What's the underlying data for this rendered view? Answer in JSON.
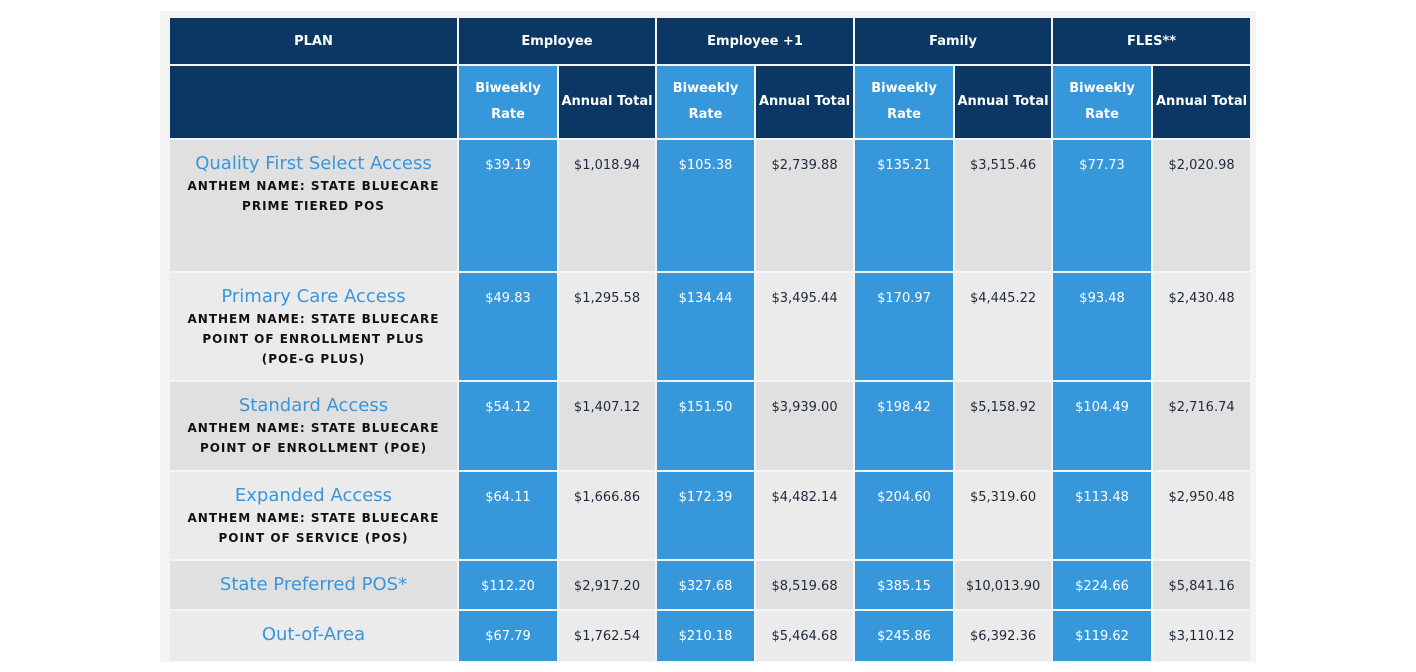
{
  "header": {
    "plan": "PLAN",
    "groups": [
      "Employee",
      "Employee +1",
      "Family",
      "FLES**"
    ],
    "biweekly": "Biweekly Rate",
    "annual": "Annual Total"
  },
  "rows": [
    {
      "name": "Quality First Select Access",
      "anthem": "ANTHEM NAME: STATE BLUECARE PRIME TIERED POS",
      "values": [
        "$39.19",
        "$1,018.94",
        "$105.38",
        "$2,739.88",
        "$135.21",
        "$3,515.46",
        "$77.73",
        "$2,020.98"
      ]
    },
    {
      "name": "Primary Care Access",
      "anthem": "ANTHEM NAME: STATE BLUECARE POINT OF ENROLLMENT PLUS (POE-G PLUS)",
      "values": [
        "$49.83",
        "$1,295.58",
        "$134.44",
        "$3,495.44",
        "$170.97",
        "$4,445.22",
        "$93.48",
        "$2,430.48"
      ]
    },
    {
      "name": "Standard Access",
      "anthem": "ANTHEM NAME: STATE BLUECARE POINT OF ENROLLMENT (POE)",
      "values": [
        "$54.12",
        "$1,407.12",
        "$151.50",
        "$3,939.00",
        "$198.42",
        "$5,158.92",
        "$104.49",
        "$2,716.74"
      ]
    },
    {
      "name": "Expanded Access",
      "anthem": "ANTHEM NAME: STATE BLUECARE POINT OF SERVICE (POS)",
      "values": [
        "$64.11",
        "$1,666.86",
        "$172.39",
        "$4,482.14",
        "$204.60",
        "$5,319.60",
        "$113.48",
        "$2,950.48"
      ]
    },
    {
      "name": "State Preferred POS*",
      "values": [
        "$112.20",
        "$2,917.20",
        "$327.68",
        "$8,519.68",
        "$385.15",
        "$10,013.90",
        "$224.66",
        "$5,841.16"
      ]
    },
    {
      "name": "Out-of-Area",
      "values": [
        "$67.79",
        "$1,762.54",
        "$210.18",
        "$5,464.68",
        "$245.86",
        "$6,392.36",
        "$119.62",
        "$3,110.12"
      ]
    }
  ],
  "colors": {
    "navy": "#0a3764",
    "blue": "#3697db",
    "plan_name": "#3a95d9"
  }
}
